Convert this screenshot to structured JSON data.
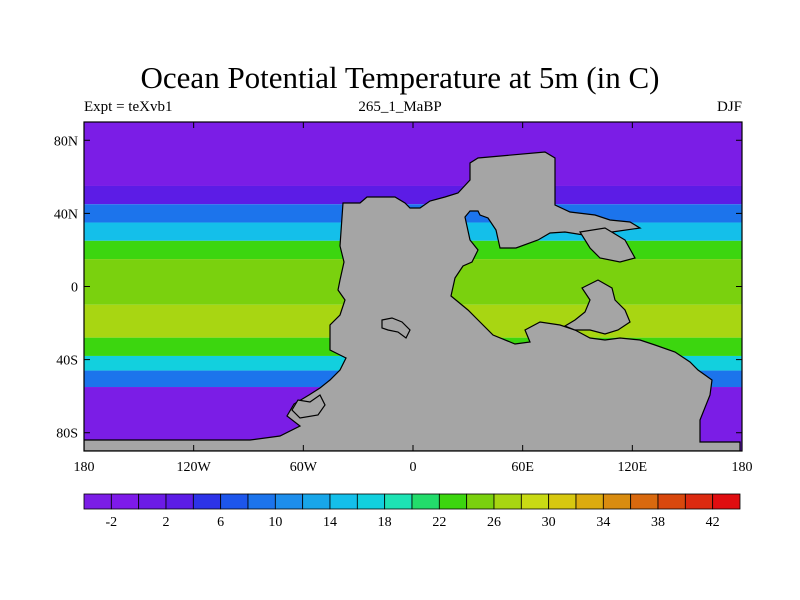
{
  "title": "Ocean Potential Temperature at 5m (in C)",
  "subtitle_left": "Expt = teXvb1",
  "subtitle_center": "265_1_MaBP",
  "subtitle_right": "DJF",
  "axes": {
    "x_ticks": [
      "180",
      "120W",
      "60W",
      "0",
      "60E",
      "120E",
      "180"
    ],
    "y_ticks": [
      "80N",
      "40N",
      "0",
      "40S",
      "80S"
    ]
  },
  "colorbar": {
    "labels": [
      "-2",
      "2",
      "6",
      "10",
      "14",
      "18",
      "22",
      "26",
      "30",
      "34",
      "38",
      "42"
    ],
    "colors": [
      "#7b1de6",
      "#7e1ae9",
      "#6c1be6",
      "#5c1ce6",
      "#2d33e8",
      "#1d56ec",
      "#1c74ec",
      "#1d8eec",
      "#18a6e9",
      "#14bfea",
      "#12d0de",
      "#1de3b4",
      "#23dc6b",
      "#3cd60f",
      "#7ad10e",
      "#a8d612",
      "#c9da14",
      "#d7c810",
      "#dcab0f",
      "#d98c10",
      "#d9690e",
      "#d9480d",
      "#dc2a10",
      "#e00d10"
    ],
    "land_color": "#a5a5a5"
  },
  "map": {
    "ocean_bands": [
      {
        "lat_range": [
          90,
          55
        ],
        "color": "#7b1de6"
      },
      {
        "lat_range": [
          55,
          45
        ],
        "color": "#5c1ce6"
      },
      {
        "lat_range": [
          45,
          35
        ],
        "color": "#1c74ec"
      },
      {
        "lat_range": [
          35,
          25
        ],
        "color": "#14bfea"
      },
      {
        "lat_range": [
          25,
          15
        ],
        "color": "#3cd60f"
      },
      {
        "lat_range": [
          15,
          -10
        ],
        "color": "#7ad10e"
      },
      {
        "lat_range": [
          -10,
          -28
        ],
        "color": "#a8d612"
      },
      {
        "lat_range": [
          -28,
          -38
        ],
        "color": "#3cd60f"
      },
      {
        "lat_range": [
          -38,
          -46
        ],
        "color": "#12d0de"
      },
      {
        "lat_range": [
          -46,
          -55
        ],
        "color": "#1c74ec"
      },
      {
        "lat_range": [
          -55,
          -90
        ],
        "color": "#7b1de6"
      }
    ]
  }
}
